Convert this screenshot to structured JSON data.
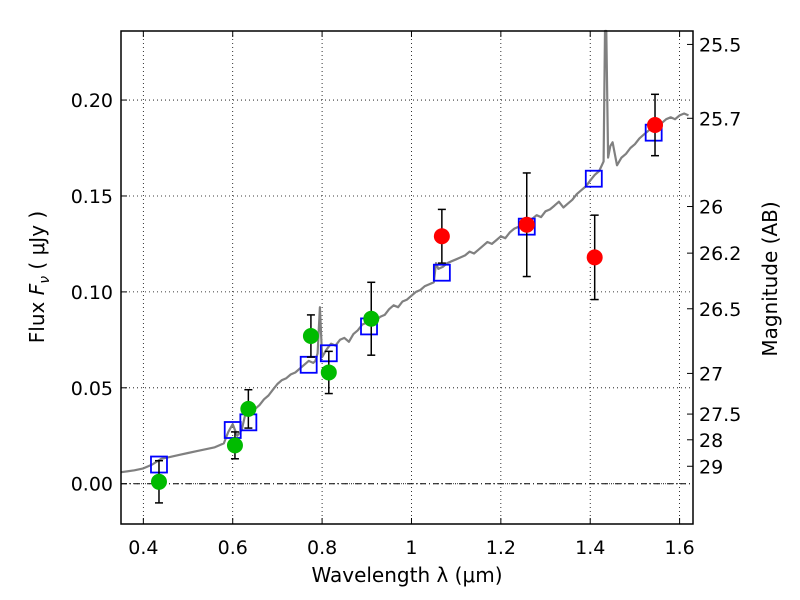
{
  "chart_data": {
    "type": "scatter",
    "xlabel": "Wavelength  λ (μm)",
    "ylabel": "Flux  F_ν  ( μJy )",
    "ylabel_parts": {
      "prefix": "Flux  ",
      "symbol": "F",
      "subscript": "ν",
      "suffix": "  ( μJy )"
    },
    "y2label": "Magnitude (AB)",
    "xlim": [
      0.35,
      1.63
    ],
    "ylim": [
      -0.021,
      0.236
    ],
    "grid": true,
    "x_ticks": [
      0.4,
      0.6,
      0.8,
      1.0,
      1.2,
      1.4,
      1.6
    ],
    "x_tick_labels": [
      "0.4",
      "0.6",
      "0.8",
      "1",
      "1.2",
      "1.4",
      "1.6"
    ],
    "y_ticks": [
      0.0,
      0.05,
      0.1,
      0.15,
      0.2
    ],
    "y_tick_labels": [
      "0.00",
      "0.05",
      "0.10",
      "0.15",
      "0.20"
    ],
    "y2_ticks": [
      {
        "label": "25.5",
        "flux": 0.229
      },
      {
        "label": "25.7",
        "flux": 0.1905
      },
      {
        "label": "26",
        "flux": 0.1445
      },
      {
        "label": "26.2",
        "flux": 0.1202
      },
      {
        "label": "26.5",
        "flux": 0.0912
      },
      {
        "label": "27",
        "flux": 0.0575
      },
      {
        "label": "27.5",
        "flux": 0.0363
      },
      {
        "label": "28",
        "flux": 0.0229
      },
      {
        "label": "29",
        "flux": 0.0091
      }
    ],
    "series": [
      {
        "marker": "line",
        "color": "#808080",
        "x": [
          0.35,
          0.38,
          0.4,
          0.42,
          0.44,
          0.46,
          0.48,
          0.5,
          0.52,
          0.54,
          0.56,
          0.58,
          0.59,
          0.6,
          0.61,
          0.62,
          0.625,
          0.63,
          0.64,
          0.65,
          0.66,
          0.67,
          0.68,
          0.69,
          0.7,
          0.71,
          0.72,
          0.73,
          0.74,
          0.75,
          0.76,
          0.77,
          0.78,
          0.785,
          0.79,
          0.795,
          0.8,
          0.81,
          0.82,
          0.83,
          0.84,
          0.85,
          0.86,
          0.87,
          0.88,
          0.89,
          0.9,
          0.91,
          0.92,
          0.93,
          0.94,
          0.95,
          0.96,
          0.97,
          0.98,
          0.99,
          1.0,
          1.01,
          1.02,
          1.03,
          1.04,
          1.05,
          1.055,
          1.06,
          1.07,
          1.08,
          1.09,
          1.1,
          1.11,
          1.12,
          1.13,
          1.14,
          1.15,
          1.16,
          1.17,
          1.18,
          1.19,
          1.2,
          1.21,
          1.22,
          1.23,
          1.24,
          1.25,
          1.26,
          1.27,
          1.28,
          1.29,
          1.3,
          1.31,
          1.32,
          1.33,
          1.34,
          1.35,
          1.36,
          1.37,
          1.38,
          1.39,
          1.4,
          1.41,
          1.42,
          1.43,
          1.433,
          1.436,
          1.44,
          1.445,
          1.45,
          1.46,
          1.47,
          1.48,
          1.49,
          1.5,
          1.51,
          1.52,
          1.53,
          1.54,
          1.55,
          1.56,
          1.57,
          1.58,
          1.59,
          1.6,
          1.61,
          1.62
        ],
        "y": [
          0.006,
          0.007,
          0.008,
          0.01,
          0.013,
          0.014,
          0.015,
          0.016,
          0.017,
          0.018,
          0.019,
          0.021,
          0.027,
          0.031,
          0.025,
          0.028,
          0.033,
          0.038,
          0.036,
          0.039,
          0.041,
          0.044,
          0.046,
          0.049,
          0.052,
          0.054,
          0.055,
          0.057,
          0.058,
          0.06,
          0.062,
          0.064,
          0.063,
          0.064,
          0.068,
          0.092,
          0.066,
          0.07,
          0.073,
          0.072,
          0.075,
          0.076,
          0.074,
          0.078,
          0.08,
          0.083,
          0.084,
          0.083,
          0.085,
          0.087,
          0.088,
          0.091,
          0.093,
          0.092,
          0.095,
          0.096,
          0.098,
          0.1,
          0.101,
          0.103,
          0.104,
          0.105,
          0.115,
          0.112,
          0.113,
          0.115,
          0.116,
          0.117,
          0.118,
          0.119,
          0.121,
          0.12,
          0.122,
          0.124,
          0.126,
          0.125,
          0.127,
          0.129,
          0.128,
          0.131,
          0.133,
          0.134,
          0.135,
          0.136,
          0.138,
          0.14,
          0.139,
          0.142,
          0.143,
          0.145,
          0.147,
          0.144,
          0.146,
          0.148,
          0.151,
          0.153,
          0.155,
          0.158,
          0.161,
          0.163,
          0.168,
          0.236,
          0.236,
          0.17,
          0.176,
          0.178,
          0.166,
          0.17,
          0.172,
          0.175,
          0.177,
          0.18,
          0.182,
          0.184,
          0.186,
          0.189,
          0.188,
          0.19,
          0.191,
          0.19,
          0.192,
          0.193,
          0.192
        ]
      },
      {
        "marker": "square",
        "color": "#0000ff",
        "x": [
          0.435,
          0.6,
          0.635,
          0.77,
          0.815,
          0.905,
          1.068,
          1.258,
          1.408,
          1.542
        ],
        "y": [
          0.01,
          0.028,
          0.032,
          0.062,
          0.068,
          0.082,
          0.11,
          0.134,
          0.159,
          0.183
        ]
      },
      {
        "marker": "circle",
        "color": "#00bb00",
        "x": [
          0.435,
          0.605,
          0.635,
          0.775,
          0.815,
          0.91
        ],
        "y": [
          0.001,
          0.02,
          0.039,
          0.077,
          0.058,
          0.086
        ],
        "yerr": [
          0.011,
          0.007,
          0.01,
          0.011,
          0.011,
          0.019
        ]
      },
      {
        "marker": "circle",
        "color": "#ff0000",
        "x": [
          1.068,
          1.258,
          1.41,
          1.545
        ],
        "y": [
          0.129,
          0.135,
          0.118,
          0.187
        ],
        "yerr": [
          0.014,
          0.027,
          0.022,
          0.016
        ]
      }
    ]
  }
}
